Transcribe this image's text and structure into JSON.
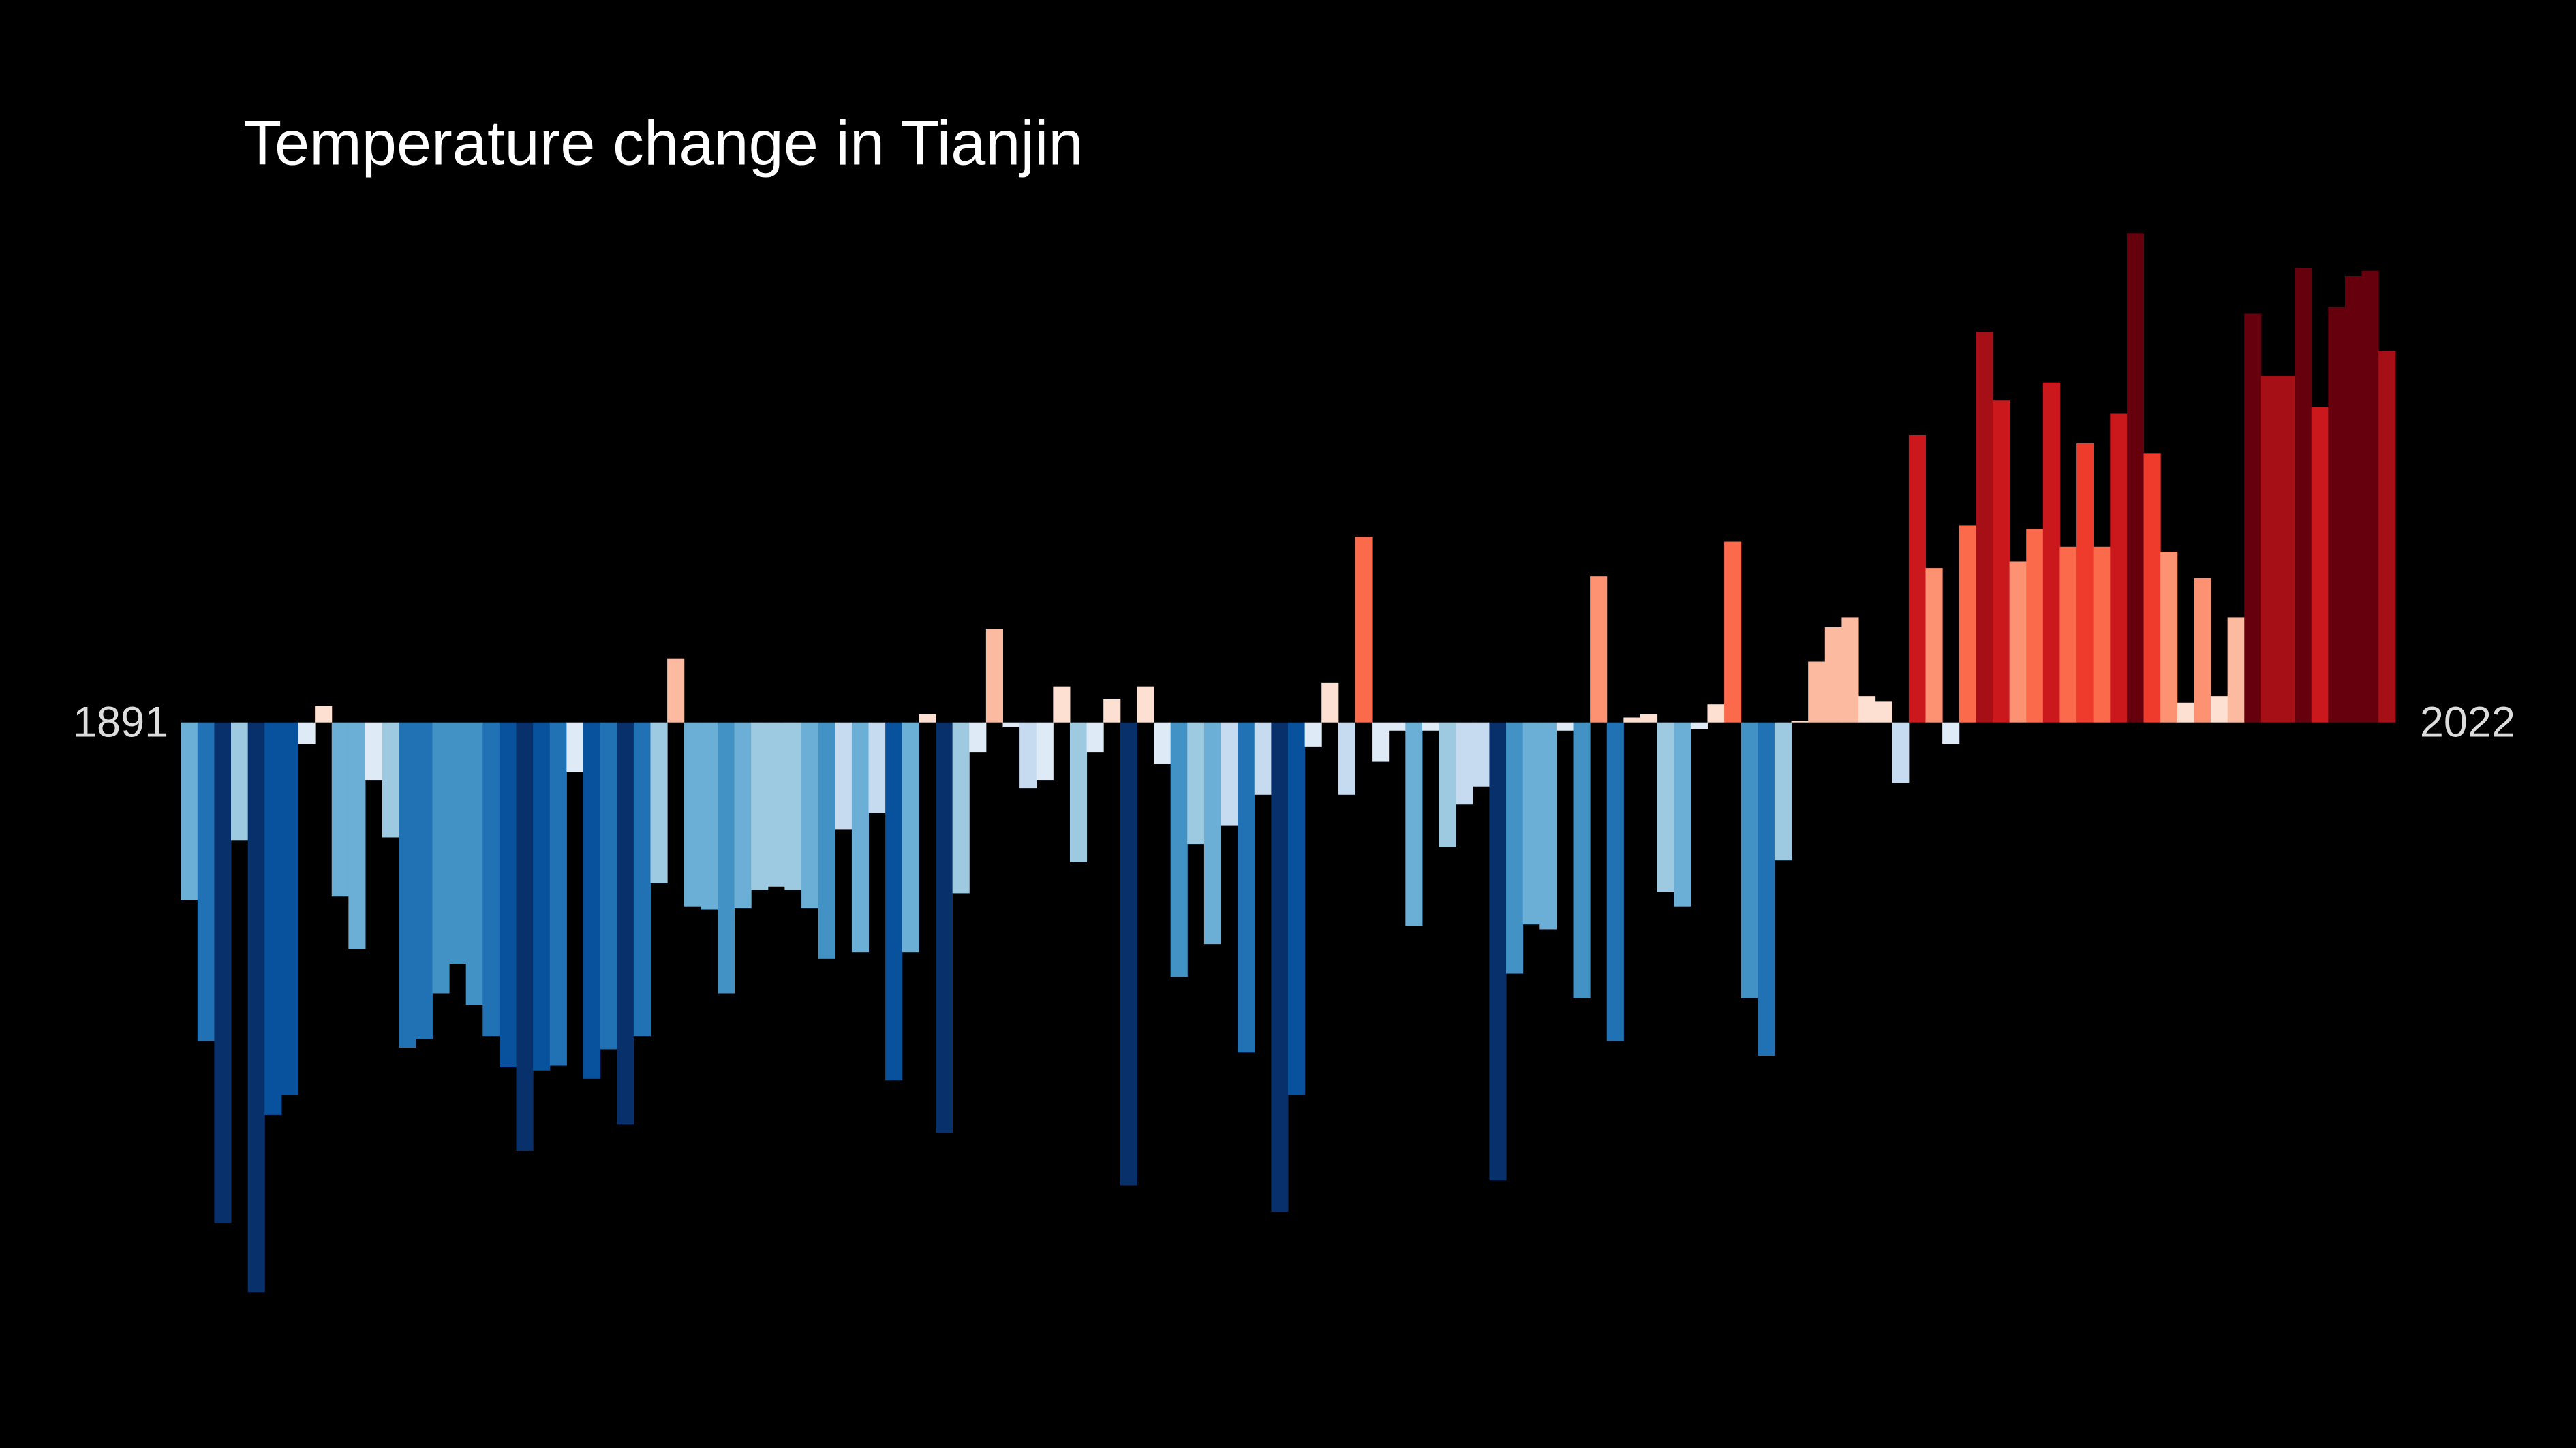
{
  "chart_data": {
    "type": "bar",
    "title": "Temperature change in Tianjin",
    "categories": [
      1891,
      null,
      null,
      null,
      null,
      null,
      null,
      null,
      null,
      null,
      null,
      null,
      null,
      null,
      null,
      null,
      null,
      null,
      null,
      null,
      null,
      null,
      null,
      null,
      null,
      null,
      null,
      null,
      null,
      null,
      null,
      null,
      null,
      null,
      null,
      null,
      null,
      null,
      null,
      null,
      null,
      null,
      null,
      null,
      null,
      null,
      null,
      null,
      null,
      null,
      null,
      null,
      null,
      null,
      null,
      null,
      null,
      null,
      null,
      null,
      null,
      null,
      null,
      null,
      null,
      null,
      null,
      null,
      null,
      null,
      null,
      null,
      null,
      null,
      null,
      null,
      null,
      null,
      null,
      null,
      null,
      null,
      null,
      null,
      null,
      null,
      null,
      null,
      null,
      null,
      null,
      null,
      null,
      null,
      null,
      null,
      null,
      null,
      null,
      null,
      null,
      null,
      null,
      null,
      null,
      null,
      null,
      null,
      null,
      null,
      null,
      null,
      null,
      null,
      null,
      null,
      null,
      null,
      null,
      null,
      null,
      null,
      null,
      null,
      null,
      null,
      null,
      null,
      null,
      null,
      null,
      2022
    ],
    "values": [
      -1.08,
      -1.94,
      -3.05,
      -0.72,
      -3.47,
      -2.39,
      -2.27,
      -0.13,
      0.1,
      -1.06,
      -1.38,
      -0.35,
      -0.7,
      -1.98,
      -1.93,
      -1.65,
      -1.47,
      -1.72,
      -1.91,
      -2.1,
      -2.61,
      -2.12,
      -2.09,
      -0.3,
      -2.17,
      -1.99,
      -2.45,
      -1.91,
      -0.98,
      0.39,
      -1.12,
      -1.14,
      -1.65,
      -1.13,
      -1.02,
      -1.0,
      -1.02,
      -1.13,
      -1.44,
      -0.65,
      -1.4,
      -0.55,
      -2.18,
      -1.4,
      0.05,
      -2.5,
      -1.04,
      -0.18,
      0.57,
      -0.03,
      -0.4,
      -0.35,
      0.22,
      -0.85,
      -0.18,
      0.14,
      -2.82,
      0.22,
      -0.25,
      -1.55,
      -0.74,
      -1.35,
      -0.63,
      -2.01,
      -0.44,
      -2.98,
      -2.27,
      -0.15,
      0.24,
      -0.44,
      1.13,
      -0.24,
      -0.05,
      -1.24,
      -0.05,
      -0.76,
      -0.5,
      -0.39,
      -2.79,
      -1.53,
      -1.23,
      -1.26,
      -0.05,
      -1.68,
      0.89,
      -1.94,
      0.03,
      0.05,
      -1.03,
      -1.12,
      -0.04,
      0.11,
      1.1,
      -1.68,
      -2.03,
      -0.84,
      0.01,
      0.37,
      0.58,
      0.64,
      0.16,
      0.13,
      -0.37,
      1.75,
      0.94,
      -0.13,
      1.2,
      2.38,
      1.96,
      0.98,
      1.18,
      2.07,
      1.07,
      1.7,
      1.07,
      1.88,
      2.98,
      1.64,
      1.04,
      0.12,
      0.88,
      0.16,
      0.64,
      2.49,
      2.11,
      2.11,
      2.77,
      1.92,
      2.53,
      2.72,
      2.75,
      2.26
    ],
    "ylim": [
      -3.6,
      3.2
    ],
    "color_scale": [
      "#08306b",
      "#08519c",
      "#2171b5",
      "#4292c6",
      "#6baed6",
      "#9ecae1",
      "#c6dbef",
      "#deebf7",
      "#fee0d2",
      "#fcbba1",
      "#fc9272",
      "#fb6a4a",
      "#ef3b2c",
      "#cb181d",
      "#a50f15",
      "#67000d"
    ],
    "color_domain": [
      -2.8,
      2.8
    ]
  }
}
